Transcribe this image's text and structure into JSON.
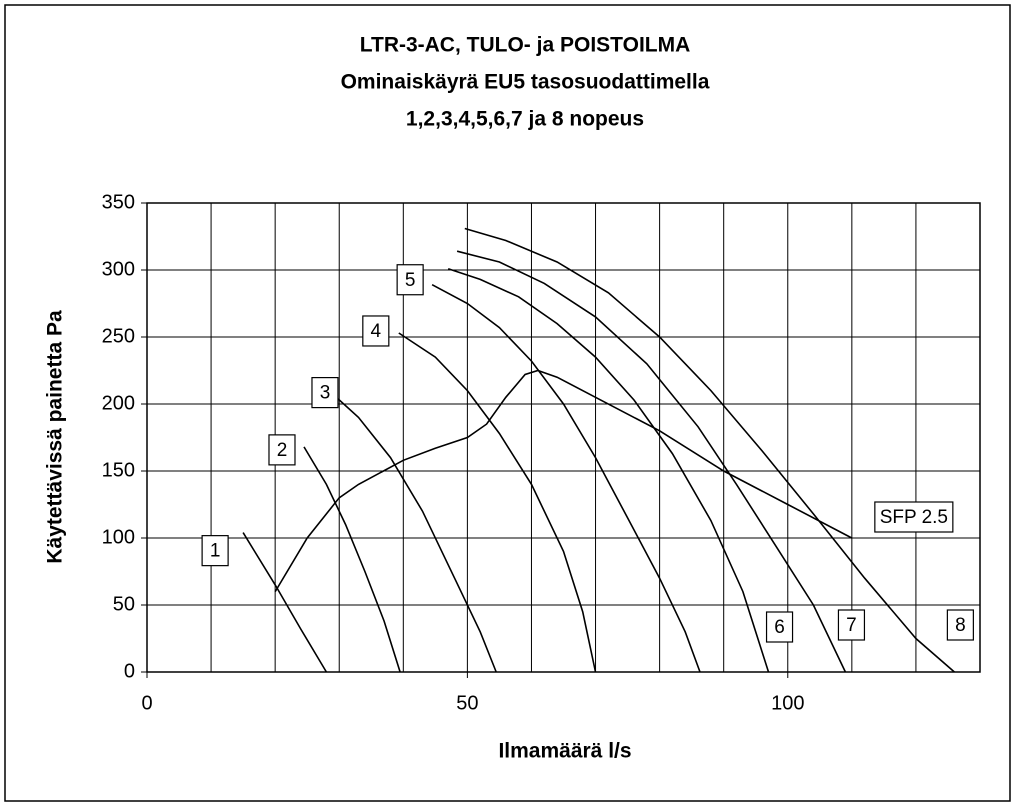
{
  "chart_data": {
    "type": "line",
    "title": [
      "LTR-3-AC, TULO- ja POISTOILMA",
      "Ominaiskäyrä EU5 tasosuodattimella",
      "1,2,3,4,5,6,7 ja 8 nopeus"
    ],
    "xlabel": "Ilmamäärä l/s",
    "ylabel": "Käytettävissä painetta Pa",
    "xlim": [
      0,
      130
    ],
    "ylim": [
      0,
      350
    ],
    "xticks": [
      0,
      50,
      100
    ],
    "xgrid": [
      0,
      10,
      20,
      30,
      40,
      50,
      60,
      70,
      80,
      90,
      100,
      110,
      120,
      130
    ],
    "yticks": [
      0,
      50,
      100,
      150,
      200,
      250,
      300,
      350
    ],
    "grid": true,
    "color": "#000000",
    "series": [
      {
        "name": "1",
        "x": [
          15,
          20,
          24,
          28
        ],
        "y": [
          104,
          65,
          32,
          0
        ]
      },
      {
        "name": "2",
        "x": [
          24.5,
          28,
          31,
          34,
          37,
          39.5
        ],
        "y": [
          168,
          140,
          110,
          75,
          38,
          0
        ]
      },
      {
        "name": "3",
        "x": [
          28.4,
          33,
          38,
          43,
          48,
          52,
          54.5
        ],
        "y": [
          210,
          190,
          160,
          120,
          70,
          30,
          0
        ]
      },
      {
        "name": "4",
        "x": [
          39.3,
          45,
          50,
          55,
          60,
          65,
          68,
          70
        ],
        "y": [
          253,
          235,
          210,
          178,
          140,
          90,
          45,
          0
        ]
      },
      {
        "name": "5",
        "x": [
          44.5,
          50,
          55,
          60,
          65,
          70,
          75,
          80,
          84,
          86.3
        ],
        "y": [
          289,
          275,
          257,
          232,
          200,
          160,
          115,
          70,
          30,
          0
        ]
      },
      {
        "name": "6",
        "x": [
          47,
          52,
          58,
          64,
          70,
          76,
          82,
          88,
          93,
          97
        ],
        "y": [
          301,
          293,
          280,
          260,
          235,
          203,
          163,
          113,
          60,
          0
        ]
      },
      {
        "name": "7",
        "x": [
          48.4,
          55,
          62,
          70,
          78,
          86,
          92,
          98,
          104,
          109
        ],
        "y": [
          314,
          306,
          290,
          265,
          230,
          183,
          140,
          95,
          50,
          0
        ]
      },
      {
        "name": "8",
        "x": [
          49.6,
          56,
          64,
          72,
          80,
          88,
          96,
          104,
          112,
          120,
          126
        ],
        "y": [
          331,
          322,
          306,
          283,
          250,
          210,
          165,
          118,
          70,
          25,
          0
        ]
      },
      {
        "name": "SFP 2.5",
        "x": [
          20,
          25,
          30,
          33,
          40,
          45,
          50,
          53,
          56,
          59,
          61,
          64,
          70,
          80,
          90,
          100,
          110
        ],
        "y": [
          60,
          100,
          130,
          140,
          158,
          167,
          175,
          185,
          205,
          222,
          225,
          220,
          205,
          180,
          150,
          125,
          100
        ]
      }
    ]
  }
}
